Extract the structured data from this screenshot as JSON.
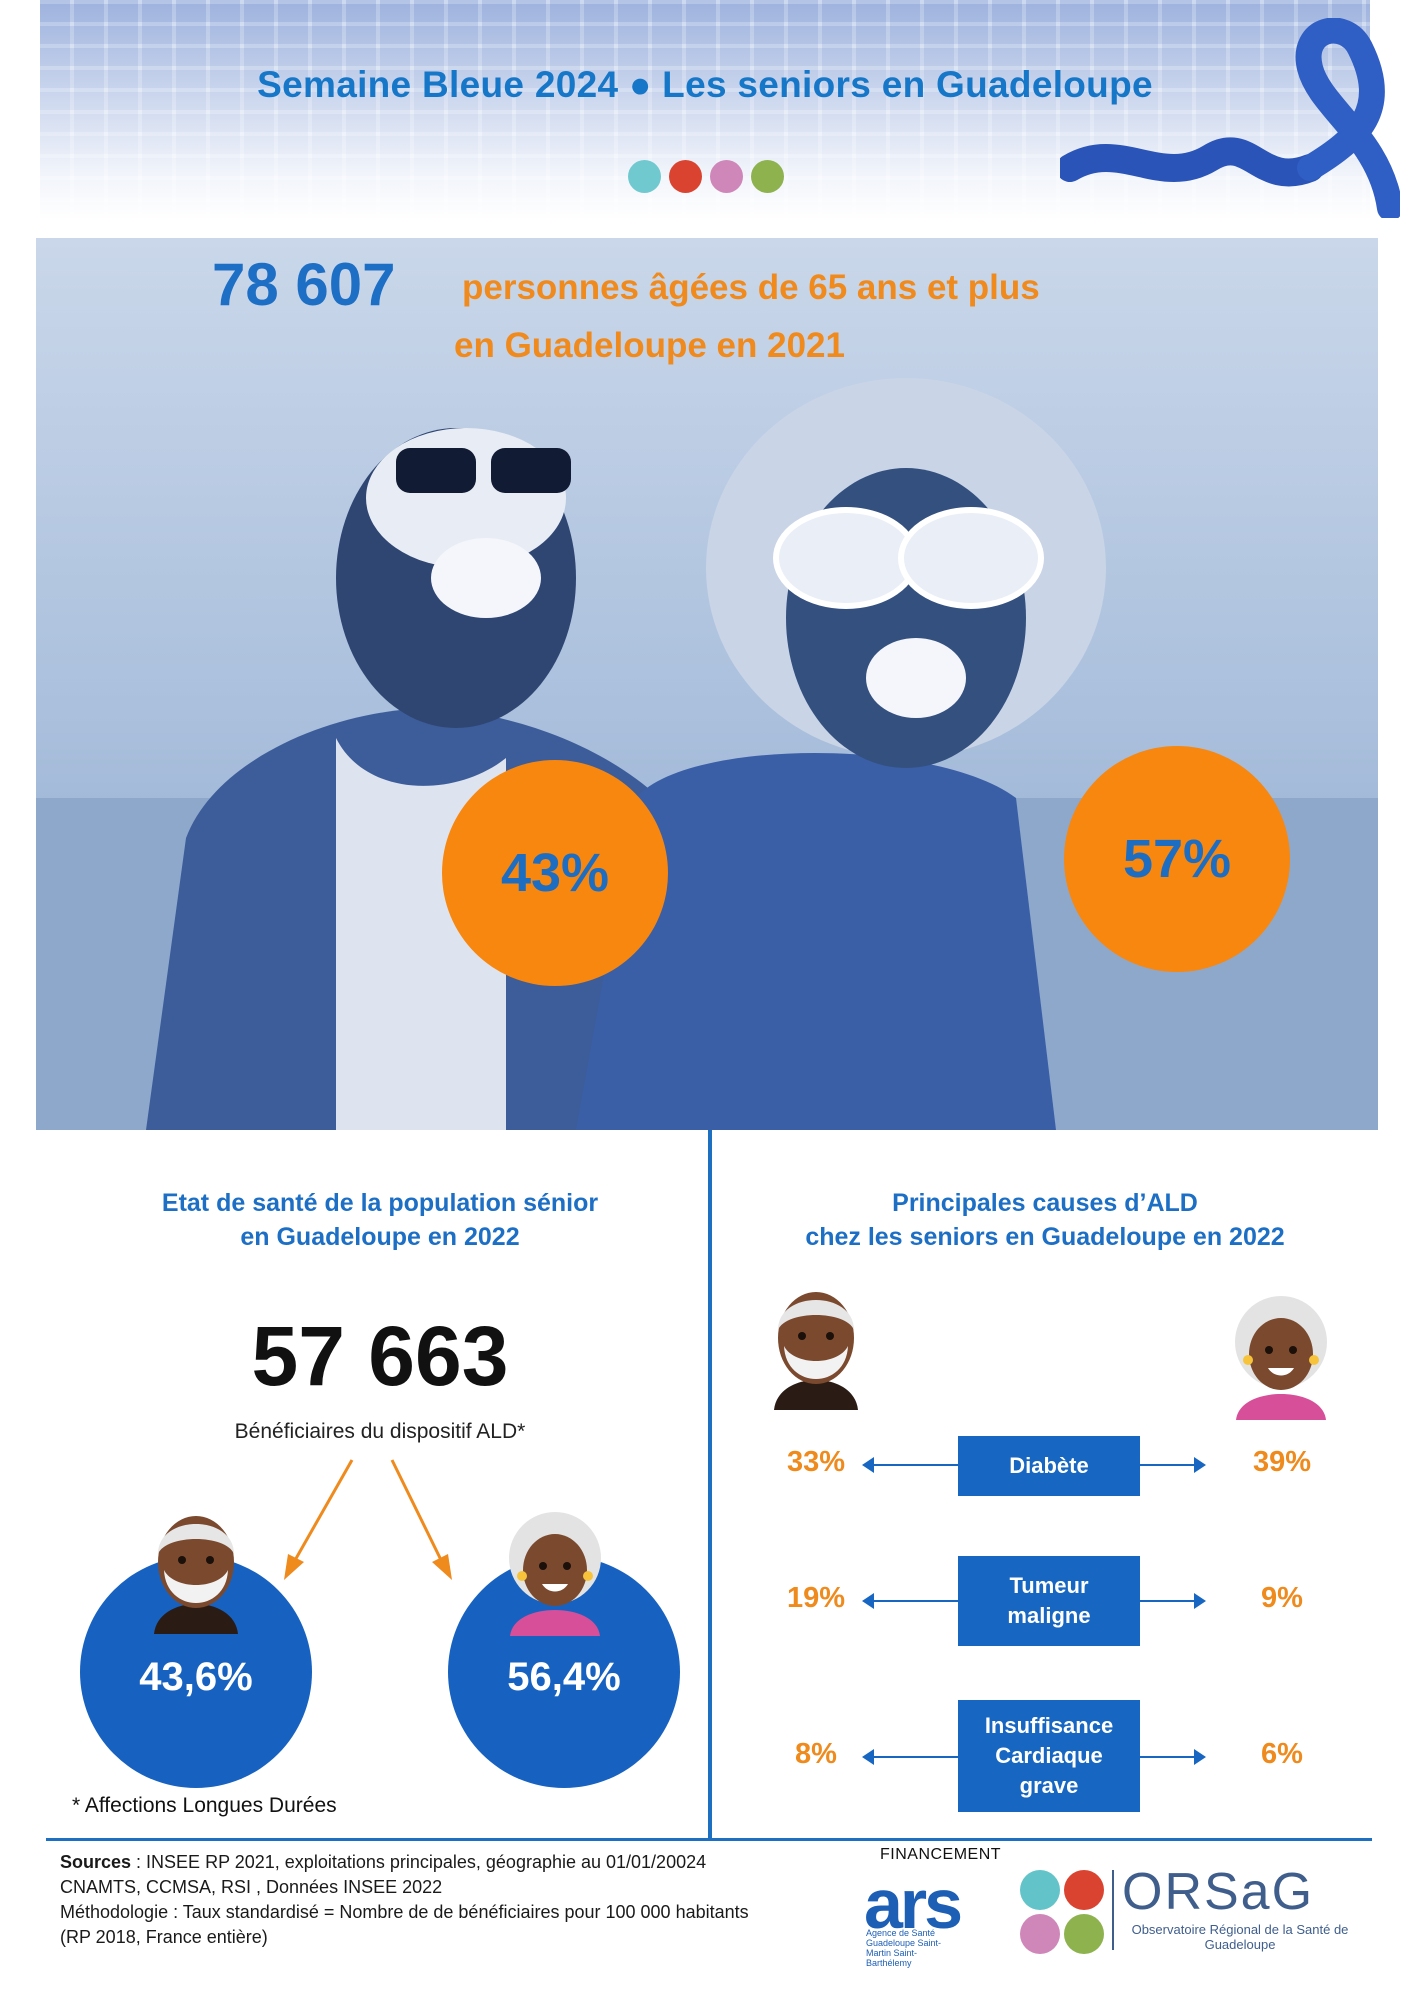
{
  "header": {
    "title": "Semaine Bleue 2024 ● Les seniors en Guadeloupe",
    "dot_colors": [
      "#6fc9cf",
      "#d9432f",
      "#cf86b8",
      "#8db24e"
    ]
  },
  "hero": {
    "count": "78 607",
    "line1": "personnes âgées de 65 ans et plus",
    "line2": "en Guadeloupe en 2021",
    "men_pct": "43%",
    "women_pct": "57%"
  },
  "health": {
    "title_line1": "Etat de santé de la population sénior",
    "title_line2": "en Guadeloupe en 2022",
    "beneficiaries": "57 663",
    "beneficiaries_label": "Bénéficiaires du dispositif ALD*",
    "men_pct": "43,6%",
    "women_pct": "56,4%",
    "footnote": "* Affections Longues Durées"
  },
  "ald": {
    "title_line1": "Principales causes d’ALD",
    "title_line2": "chez les seniors en  Guadeloupe en 2022",
    "causes": [
      {
        "label": "Diabète",
        "men": "33%",
        "women": "39%"
      },
      {
        "label": "Tumeur maligne",
        "men": "19%",
        "women": "9%"
      },
      {
        "label": "Insuffisance Cardiaque grave",
        "men": "8%",
        "women": "6%"
      }
    ]
  },
  "footer": {
    "sources_label": "Sources",
    "sources_line1": " :  INSEE RP 2021, exploitations principales, géographie au 01/01/20024",
    "sources_line2": "CNAMTS, CCMSA, RSI , Données INSEE 2022",
    "sources_line3": "Méthodologie : Taux standardisé  = Nombre de de bénéficiaires pour 100 000 habitants",
    "sources_line4": "(RP 2018, France entière)",
    "financement": "FINANCEMENT",
    "ars_name": "ars",
    "ars_sub": "Agence de Santé Guadeloupe Saint-Martin Saint-Barthélemy",
    "orsag_name": "ORSaG",
    "orsag_sub": "Observatoire Régional de la Santé de Guadeloupe"
  }
}
